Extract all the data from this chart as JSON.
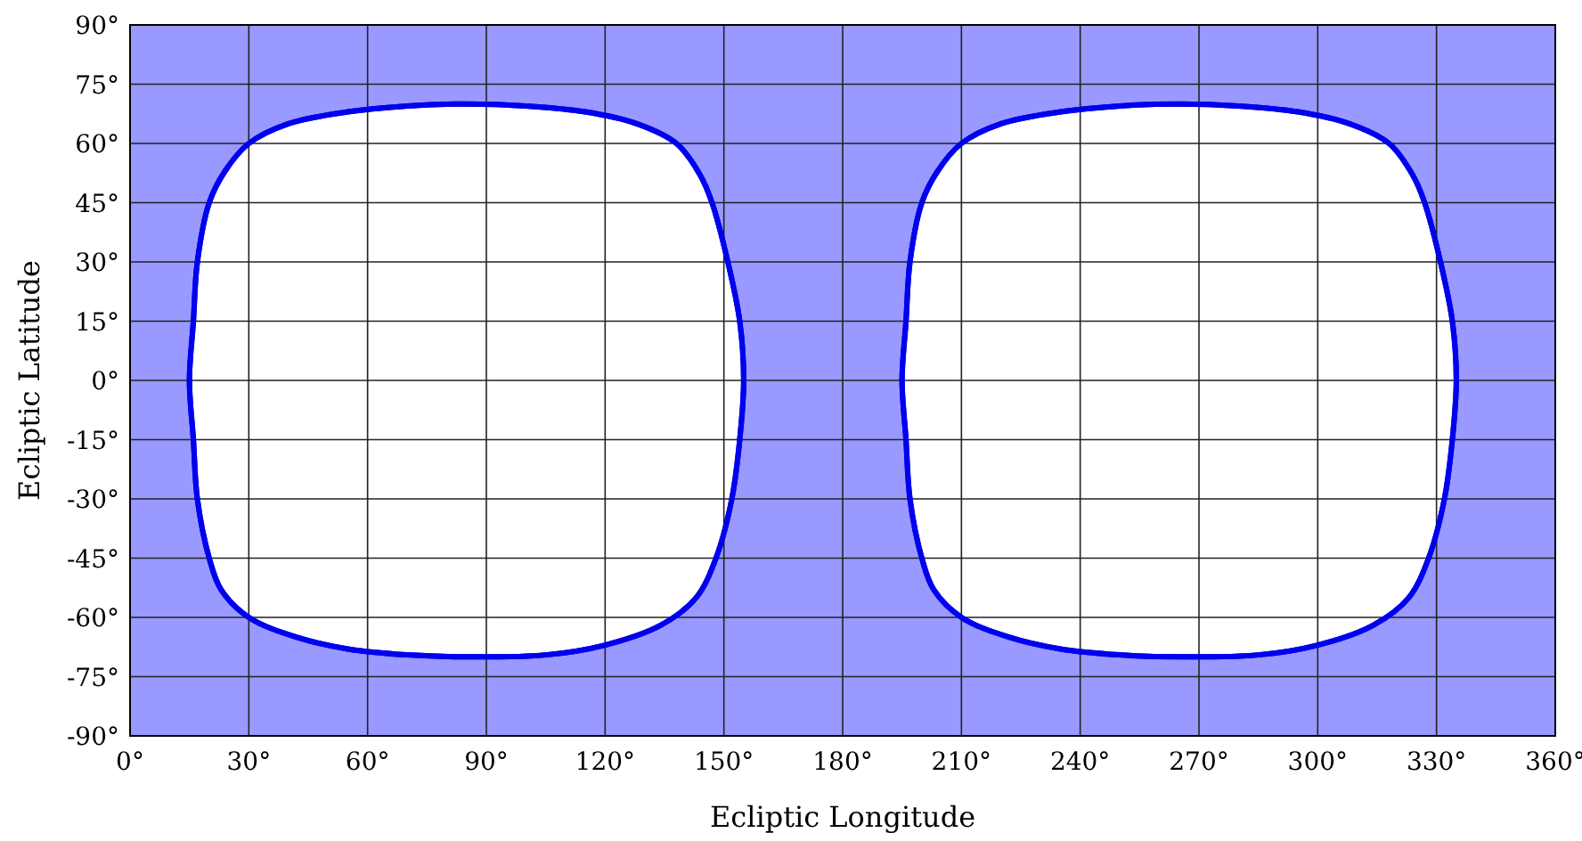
{
  "chart_data": {
    "type": "area",
    "xlabel": "Ecliptic Longitude",
    "ylabel": "Ecliptic Latitude",
    "xlim": [
      0,
      360
    ],
    "ylim": [
      -90,
      90
    ],
    "xticks": [
      {
        "value": 0,
        "label": "0°"
      },
      {
        "value": 30,
        "label": "30°"
      },
      {
        "value": 60,
        "label": "60°"
      },
      {
        "value": 90,
        "label": "90°"
      },
      {
        "value": 120,
        "label": "120°"
      },
      {
        "value": 150,
        "label": "150°"
      },
      {
        "value": 180,
        "label": "180°"
      },
      {
        "value": 210,
        "label": "210°"
      },
      {
        "value": 240,
        "label": "240°"
      },
      {
        "value": 270,
        "label": "270°"
      },
      {
        "value": 300,
        "label": "300°"
      },
      {
        "value": 330,
        "label": "330°"
      },
      {
        "value": 360,
        "label": "360°"
      }
    ],
    "yticks": [
      {
        "value": -90,
        "label": "-90°"
      },
      {
        "value": -75,
        "label": "-75°"
      },
      {
        "value": -60,
        "label": "-60°"
      },
      {
        "value": -45,
        "label": "-45°"
      },
      {
        "value": -30,
        "label": "-30°"
      },
      {
        "value": -15,
        "label": "-15°"
      },
      {
        "value": 0,
        "label": "0°"
      },
      {
        "value": 15,
        "label": "15°"
      },
      {
        "value": 30,
        "label": "30°"
      },
      {
        "value": 45,
        "label": "45°"
      },
      {
        "value": 60,
        "label": "60°"
      },
      {
        "value": 75,
        "label": "75°"
      },
      {
        "value": 90,
        "label": "90°"
      }
    ],
    "grid": true,
    "marker": "none",
    "line_style": "solid",
    "bands": [
      {
        "axis": "x",
        "from": 0,
        "to": 360,
        "color": "#9999ff"
      }
    ],
    "series": [
      {
        "color": "#0000ee",
        "x": [
          15,
          16,
          17,
          20,
          24,
          30,
          40,
          55,
          70,
          85,
          100,
          115,
          128,
          138,
          144,
          147,
          151,
          154,
          155,
          154,
          152,
          148,
          143,
          134,
          120,
          105,
          85,
          70,
          55,
          42,
          30,
          23,
          20,
          17,
          16,
          15
        ],
        "values": [
          0,
          15,
          30,
          45,
          53,
          60,
          65,
          68,
          69.5,
          70,
          69.5,
          68,
          65,
          60,
          52,
          45,
          30,
          15,
          0,
          -15,
          -30,
          -45,
          -55,
          -62,
          -67,
          -69.5,
          -70,
          -69.5,
          -68,
          -65,
          -60,
          -53,
          -45,
          -30,
          -15,
          0
        ]
      },
      {
        "color": "#0000ee",
        "x": [
          195,
          196,
          197,
          200,
          204,
          210,
          220,
          235,
          250,
          265,
          280,
          295,
          308,
          318,
          324,
          327,
          331,
          334,
          335,
          334,
          332,
          328,
          323,
          314,
          300,
          285,
          265,
          250,
          235,
          222,
          210,
          203,
          200,
          197,
          196,
          195
        ],
        "values": [
          0,
          15,
          30,
          45,
          53,
          60,
          65,
          68,
          69.5,
          70,
          69.5,
          68,
          65,
          60,
          52,
          45,
          30,
          15,
          0,
          -15,
          -30,
          -45,
          -55,
          -62,
          -67,
          -69.5,
          -70,
          -69.5,
          -68,
          -65,
          -60,
          -53,
          -45,
          -30,
          -15,
          0
        ]
      }
    ]
  }
}
